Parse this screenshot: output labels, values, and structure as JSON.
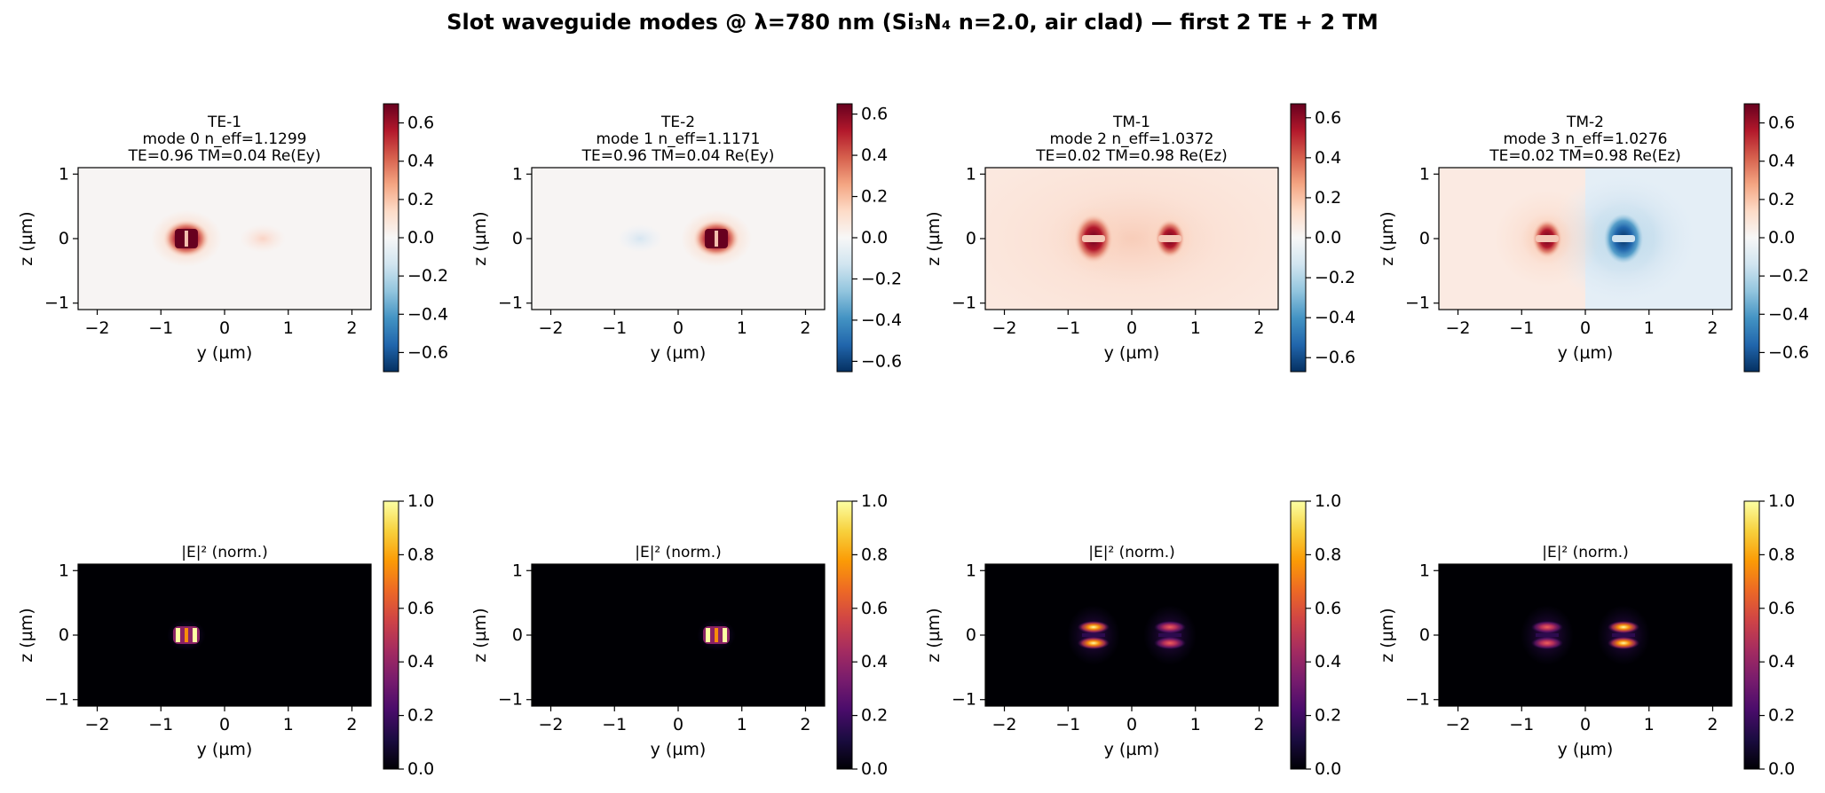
{
  "figure": {
    "title": "Slot waveguide modes @ λ=780 nm (Si₃N₄ n=2.0, air clad) — first 2 TE + 2 TM"
  },
  "chart_data": [
    {
      "type": "heatmap",
      "field": "Ey",
      "title_lines": [
        "TE-1",
        "mode 0  n_eff=1.1299",
        "TE=0.96  TM=0.04  Re(Ey)"
      ],
      "xlabel": "y (µm)",
      "ylabel": "z (µm)",
      "xlim": [
        -2.3,
        2.3
      ],
      "ylim": [
        -1.1,
        1.1
      ],
      "xticks": [
        "−2",
        "−1",
        "0",
        "1",
        "2"
      ],
      "yticks": [
        "−1",
        "0",
        "1"
      ],
      "cmap": "RdBu_r",
      "clim": [
        -0.7,
        0.7
      ],
      "cbar_ticks": [
        "−0.6",
        "−0.4",
        "−0.2",
        "0.0",
        "0.2",
        "0.4",
        "0.6"
      ],
      "amplitudes": [
        0.7,
        0.08
      ]
    },
    {
      "type": "heatmap",
      "field": "Ey",
      "title_lines": [
        "TE-2",
        "mode 1  n_eff=1.1171",
        "TE=0.96  TM=0.04  Re(Ey)"
      ],
      "xlabel": "y (µm)",
      "ylabel": "z (µm)",
      "xlim": [
        -2.3,
        2.3
      ],
      "ylim": [
        -1.1,
        1.1
      ],
      "xticks": [
        "−2",
        "−1",
        "0",
        "1",
        "2"
      ],
      "yticks": [
        "−1",
        "0",
        "1"
      ],
      "cmap": "RdBu_r",
      "clim": [
        -0.65,
        0.65
      ],
      "cbar_ticks": [
        "−0.6",
        "−0.4",
        "−0.2",
        "0.0",
        "0.2",
        "0.4",
        "0.6"
      ],
      "amplitudes": [
        -0.06,
        0.65
      ]
    },
    {
      "type": "heatmap",
      "field": "Ez",
      "title_lines": [
        "TM-1",
        "mode 2  n_eff=1.0372",
        "TE=0.02  TM=0.98  Re(Ez)"
      ],
      "xlabel": "y (µm)",
      "ylabel": "z (µm)",
      "xlim": [
        -2.3,
        2.3
      ],
      "ylim": [
        -1.1,
        1.1
      ],
      "xticks": [
        "−2",
        "−1",
        "0",
        "1",
        "2"
      ],
      "yticks": [
        "−1",
        "0",
        "1"
      ],
      "cmap": "RdBu_r",
      "clim": [
        -0.67,
        0.67
      ],
      "cbar_ticks": [
        "−0.6",
        "−0.4",
        "−0.2",
        "0.0",
        "0.2",
        "0.4",
        "0.6"
      ],
      "amplitudes": [
        0.67,
        0.5
      ]
    },
    {
      "type": "heatmap",
      "field": "Ez",
      "title_lines": [
        "TM-2",
        "mode 3  n_eff=1.0276",
        "TE=0.02  TM=0.98  Re(Ez)"
      ],
      "xlabel": "y (µm)",
      "ylabel": "z (µm)",
      "xlim": [
        -2.3,
        2.3
      ],
      "ylim": [
        -1.1,
        1.1
      ],
      "xticks": [
        "−2",
        "−1",
        "0",
        "1",
        "2"
      ],
      "yticks": [
        "−1",
        "0",
        "1"
      ],
      "cmap": "RdBu_r",
      "clim": [
        -0.7,
        0.7
      ],
      "cbar_ticks": [
        "−0.6",
        "−0.4",
        "−0.2",
        "0.0",
        "0.2",
        "0.4",
        "0.6"
      ],
      "amplitudes": [
        0.5,
        -0.7
      ]
    },
    {
      "type": "heatmap",
      "field": "|E|^2",
      "title_lines": [
        "|E|² (norm.)"
      ],
      "xlabel": "y (µm)",
      "ylabel": "z (µm)",
      "xlim": [
        -2.3,
        2.3
      ],
      "ylim": [
        -1.1,
        1.1
      ],
      "xticks": [
        "−2",
        "−1",
        "0",
        "1",
        "2"
      ],
      "yticks": [
        "−1",
        "0",
        "1"
      ],
      "cmap": "inferno",
      "clim": [
        0,
        1
      ],
      "cbar_ticks": [
        "0.0",
        "0.2",
        "0.4",
        "0.6",
        "0.8",
        "1.0"
      ],
      "amplitudes": [
        1.0,
        0.0
      ],
      "style": "TE"
    },
    {
      "type": "heatmap",
      "field": "|E|^2",
      "title_lines": [
        "|E|² (norm.)"
      ],
      "xlabel": "y (µm)",
      "ylabel": "z (µm)",
      "xlim": [
        -2.3,
        2.3
      ],
      "ylim": [
        -1.1,
        1.1
      ],
      "xticks": [
        "−2",
        "−1",
        "0",
        "1",
        "2"
      ],
      "yticks": [
        "−1",
        "0",
        "1"
      ],
      "cmap": "inferno",
      "clim": [
        0,
        1
      ],
      "cbar_ticks": [
        "0.0",
        "0.2",
        "0.4",
        "0.6",
        "0.8",
        "1.0"
      ],
      "amplitudes": [
        0.0,
        1.0
      ],
      "style": "TE"
    },
    {
      "type": "heatmap",
      "field": "|E|^2",
      "title_lines": [
        "|E|² (norm.)"
      ],
      "xlabel": "y (µm)",
      "ylabel": "z (µm)",
      "xlim": [
        -2.3,
        2.3
      ],
      "ylim": [
        -1.1,
        1.1
      ],
      "xticks": [
        "−2",
        "−1",
        "0",
        "1",
        "2"
      ],
      "yticks": [
        "−1",
        "0",
        "1"
      ],
      "cmap": "inferno",
      "clim": [
        0,
        1
      ],
      "cbar_ticks": [
        "0.0",
        "0.2",
        "0.4",
        "0.6",
        "0.8",
        "1.0"
      ],
      "amplitudes": [
        1.0,
        0.55
      ],
      "style": "TM"
    },
    {
      "type": "heatmap",
      "field": "|E|^2",
      "title_lines": [
        "|E|² (norm.)"
      ],
      "xlabel": "y (µm)",
      "ylabel": "z (µm)",
      "xlim": [
        -2.3,
        2.3
      ],
      "ylim": [
        -1.1,
        1.1
      ],
      "xticks": [
        "−2",
        "−1",
        "0",
        "1",
        "2"
      ],
      "yticks": [
        "−1",
        "0",
        "1"
      ],
      "cmap": "inferno",
      "clim": [
        0,
        1
      ],
      "cbar_ticks": [
        "0.0",
        "0.2",
        "0.4",
        "0.6",
        "0.8",
        "1.0"
      ],
      "amplitudes": [
        0.55,
        1.0
      ],
      "style": "TM"
    }
  ]
}
